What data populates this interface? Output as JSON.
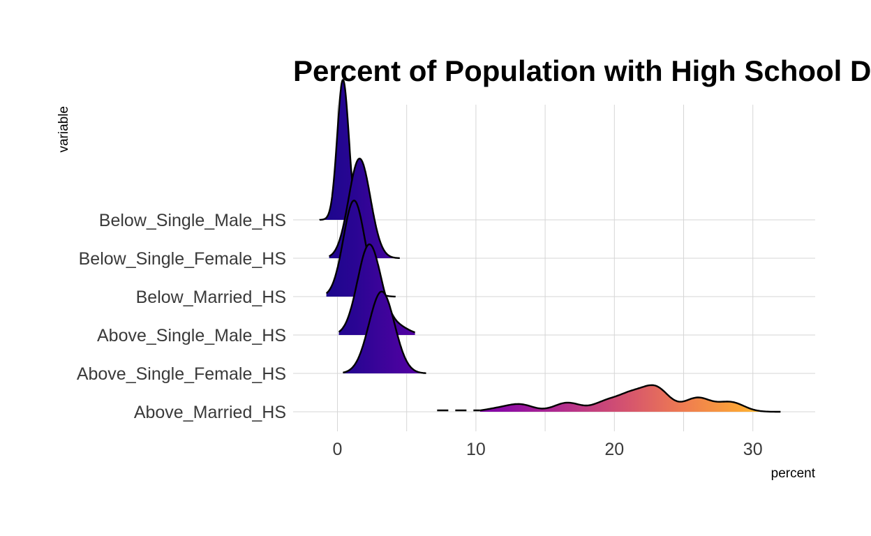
{
  "chart_data": {
    "type": "ridgeline",
    "title": "Percent of Population with High School Diploma",
    "xlabel": "percent",
    "ylabel": "variable",
    "xlim": [
      -3.2,
      34.5
    ],
    "x_ticks": [
      0,
      10,
      20,
      30
    ],
    "grid": true,
    "fill_gradient": "plasma, by x value",
    "categories": [
      "Above_Married_HS",
      "Above_Single_Female_HS",
      "Above_Single_Male_HS",
      "Below_Married_HS",
      "Below_Single_Female_HS",
      "Below_Single_Male_HS"
    ],
    "series": [
      {
        "name": "Above_Married_HS",
        "x_range": [
          7.2,
          32
        ],
        "dashed_left_tail": [
          7.2,
          10.3
        ],
        "density_peaks": [
          {
            "x": 11.5,
            "h": 0.12
          },
          {
            "x": 13.2,
            "h": 0.3
          },
          {
            "x": 16.6,
            "h": 0.38
          },
          {
            "x": 19.4,
            "h": 0.4
          },
          {
            "x": 21.2,
            "h": 0.66
          },
          {
            "x": 23.0,
            "h": 0.98
          },
          {
            "x": 26.0,
            "h": 0.58
          },
          {
            "x": 28.4,
            "h": 0.4
          }
        ]
      },
      {
        "name": "Above_Single_Female_HS",
        "x_range": [
          0.4,
          6.4
        ],
        "density_peaks": [
          {
            "x": 3.2,
            "h": 3.45
          }
        ]
      },
      {
        "name": "Above_Single_Male_HS",
        "x_range": [
          0.1,
          5.6
        ],
        "density_peaks": [
          {
            "x": 2.3,
            "h": 3.8
          },
          {
            "x": 4.3,
            "h": 0.35
          }
        ]
      },
      {
        "name": "Below_Married_HS",
        "x_range": [
          -0.8,
          4.2
        ],
        "density_peaks": [
          {
            "x": 1.2,
            "h": 4.05
          }
        ]
      },
      {
        "name": "Below_Single_Female_HS",
        "x_range": [
          -0.6,
          4.5
        ],
        "density_peaks": [
          {
            "x": 1.6,
            "h": 4.2
          }
        ]
      },
      {
        "name": "Below_Single_Male_HS",
        "x_range": [
          -1.3,
          1.4
        ],
        "density_peaks": [
          {
            "x": 0.4,
            "h": 5.9
          }
        ]
      }
    ]
  }
}
